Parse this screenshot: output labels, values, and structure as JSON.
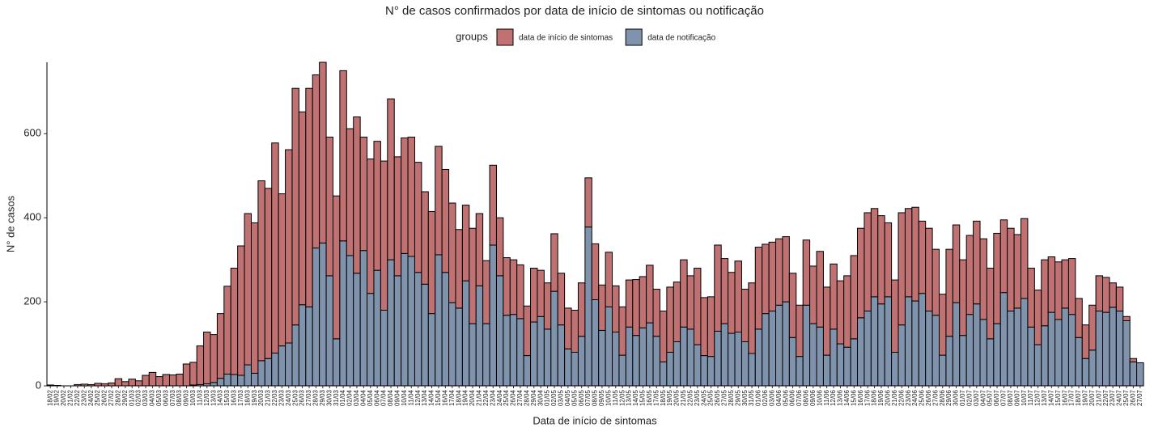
{
  "chart_data": {
    "type": "stacked_bar",
    "title": "N° de casos confirmados por data de início de sintomas ou notificação",
    "legend_title": "groups",
    "xlabel": "Data de início de sintomas",
    "ylabel": "N° de casos",
    "categories": [
      "18/02",
      "19/02",
      "20/02",
      "21/02",
      "22/02",
      "23/02",
      "24/02",
      "25/02",
      "26/02",
      "27/02",
      "28/02",
      "29/02",
      "01/03",
      "02/03",
      "03/03",
      "04/03",
      "05/03",
      "06/03",
      "07/03",
      "08/03",
      "09/03",
      "10/03",
      "11/03",
      "12/03",
      "13/03",
      "14/03",
      "15/03",
      "16/03",
      "17/03",
      "18/03",
      "19/03",
      "20/03",
      "21/03",
      "22/03",
      "23/03",
      "24/03",
      "25/03",
      "26/03",
      "27/03",
      "28/03",
      "29/03",
      "30/03",
      "31/03",
      "01/04",
      "02/04",
      "03/04",
      "04/04",
      "05/04",
      "06/04",
      "07/04",
      "08/04",
      "09/04",
      "10/04",
      "11/04",
      "12/04",
      "13/04",
      "14/04",
      "15/04",
      "16/04",
      "17/04",
      "18/04",
      "19/04",
      "20/04",
      "21/04",
      "22/04",
      "23/04",
      "24/04",
      "25/04",
      "26/04",
      "27/04",
      "28/04",
      "29/04",
      "30/04",
      "01/05",
      "02/05",
      "03/05",
      "04/05",
      "05/05",
      "06/05",
      "07/05",
      "08/05",
      "09/05",
      "10/05",
      "11/05",
      "12/05",
      "13/05",
      "14/05",
      "15/05",
      "16/05",
      "17/05",
      "18/05",
      "19/05",
      "20/05",
      "21/05",
      "22/05",
      "23/05",
      "24/05",
      "25/05",
      "26/05",
      "27/05",
      "28/05",
      "29/05",
      "30/05",
      "31/05",
      "01/06",
      "02/06",
      "03/06",
      "04/06",
      "05/06",
      "06/06",
      "07/06",
      "08/06",
      "09/06",
      "10/06",
      "11/06",
      "12/06",
      "13/06",
      "14/06",
      "15/06",
      "16/06",
      "17/06",
      "18/06",
      "19/06",
      "20/06",
      "21/06",
      "22/06",
      "23/06",
      "24/06",
      "25/06",
      "26/06",
      "27/06",
      "28/06",
      "29/06",
      "30/06",
      "01/07",
      "02/07",
      "03/07",
      "04/07",
      "05/07",
      "06/07",
      "07/07",
      "08/07",
      "09/07",
      "10/07",
      "11/07",
      "12/07",
      "13/07",
      "14/07",
      "15/07",
      "16/07",
      "17/07",
      "18/07",
      "19/07",
      "20/07",
      "21/07",
      "22/07",
      "23/07",
      "24/07",
      "25/07",
      "26/07",
      "27/07"
    ],
    "series": [
      {
        "name": "data de início de sintomas",
        "color": "#c07272",
        "values": [
          2,
          1,
          0,
          0,
          3,
          4,
          3,
          6,
          5,
          7,
          17,
          10,
          16,
          12,
          25,
          32,
          22,
          27,
          26,
          28,
          52,
          54,
          92,
          123,
          114,
          154,
          209,
          253,
          308,
          360,
          358,
          428,
          405,
          500,
          362,
          460,
          563,
          459,
          520,
          412,
          430,
          330,
          340,
          405,
          302,
          372,
          270,
          320,
          307,
          355,
          383,
          283,
          275,
          284,
          262,
          220,
          243,
          258,
          245,
          237,
          187,
          180,
          227,
          172,
          150,
          190,
          138,
          137,
          130,
          128,
          118,
          128,
          110,
          110,
          137,
          123,
          97,
          100,
          127,
          117,
          133,
          108,
          130,
          110,
          115,
          112,
          133,
          122,
          137,
          112,
          121,
          155,
          142,
          160,
          127,
          182,
          138,
          142,
          205,
          155,
          145,
          169,
          125,
          168,
          195,
          165,
          164,
          158,
          155,
          153,
          122,
          155,
          137,
          180,
          162,
          155,
          150,
          170,
          198,
          213,
          234,
          210,
          210,
          176,
          172,
          267,
          210,
          223,
          172,
          197,
          157,
          145,
          207,
          185,
          180,
          188,
          197,
          192,
          168,
          215,
          173,
          197,
          175,
          190,
          140,
          130,
          157,
          132,
          137,
          115,
          133,
          93,
          80,
          107,
          84,
          83,
          58,
          57,
          10,
          8,
          0
        ]
      },
      {
        "name": "data de notificação",
        "color": "#8093ad",
        "values": [
          0,
          0,
          0,
          0,
          0,
          0,
          0,
          0,
          0,
          0,
          0,
          0,
          0,
          0,
          0,
          0,
          0,
          0,
          0,
          0,
          0,
          2,
          3,
          5,
          8,
          18,
          28,
          27,
          25,
          50,
          30,
          60,
          65,
          78,
          95,
          102,
          145,
          193,
          188,
          328,
          340,
          262,
          112,
          345,
          310,
          268,
          322,
          220,
          275,
          180,
          300,
          262,
          315,
          308,
          270,
          242,
          172,
          312,
          270,
          198,
          185,
          250,
          148,
          238,
          148,
          335,
          262,
          168,
          170,
          160,
          72,
          152,
          165,
          135,
          225,
          145,
          88,
          80,
          118,
          378,
          205,
          132,
          188,
          128,
          73,
          140,
          120,
          138,
          150,
          118,
          57,
          80,
          105,
          140,
          135,
          98,
          72,
          70,
          130,
          148,
          125,
          128,
          105,
          77,
          135,
          172,
          178,
          192,
          200,
          115,
          70,
          192,
          148,
          140,
          73,
          135,
          100,
          92,
          112,
          162,
          178,
          212,
          195,
          212,
          80,
          145,
          212,
          202,
          220,
          178,
          168,
          73,
          118,
          198,
          120,
          170,
          195,
          158,
          112,
          148,
          222,
          178,
          185,
          208,
          140,
          98,
          143,
          175,
          158,
          185,
          170,
          115,
          65,
          85,
          178,
          175,
          187,
          178,
          155,
          57,
          55
        ]
      }
    ],
    "ylim": [
      0,
      770
    ],
    "yticks": [
      0,
      200,
      400,
      600
    ],
    "legend": "top"
  }
}
